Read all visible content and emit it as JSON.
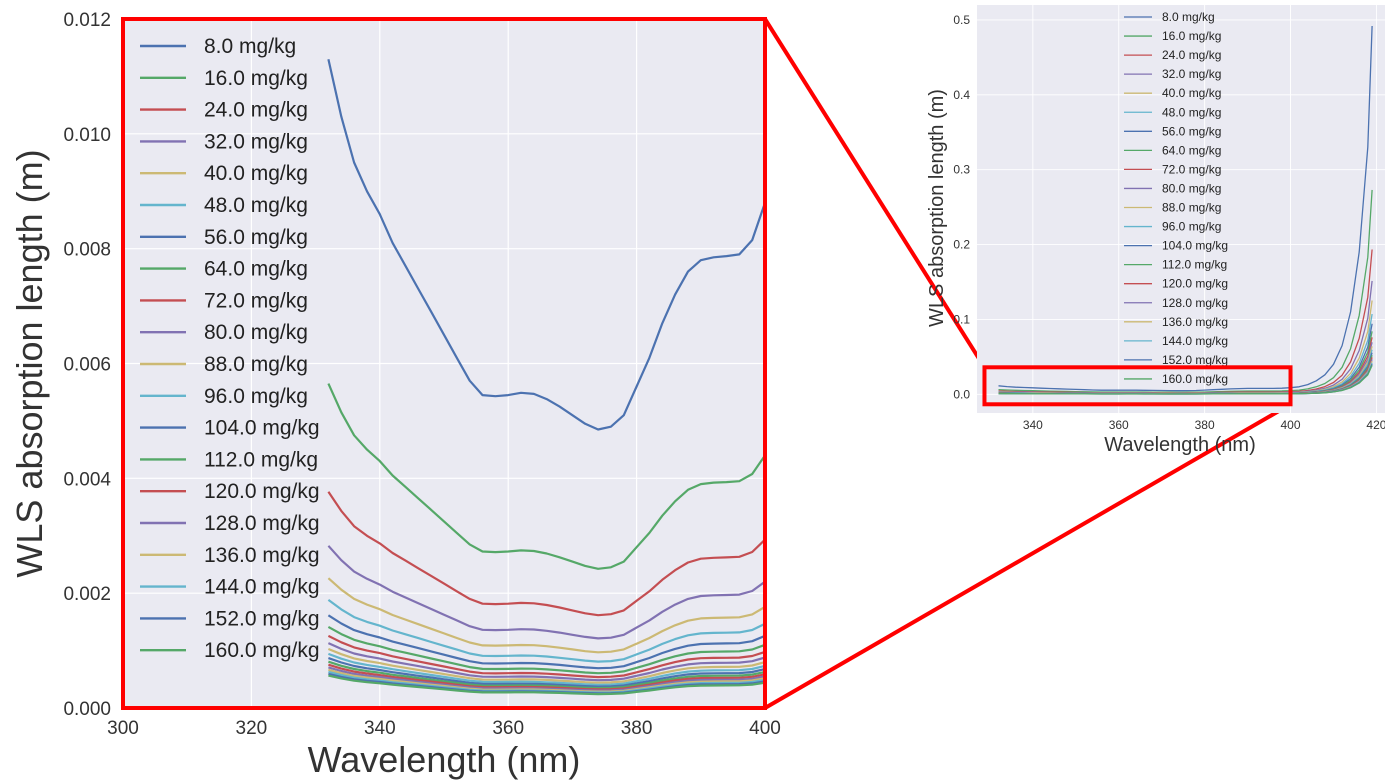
{
  "colors": {
    "panel_bg": "#EAEAF2",
    "grid": "#FFFFFF",
    "zoom_box": "#FF0000",
    "palette": [
      "#4C72B0",
      "#55A868",
      "#C44E52",
      "#8172B2",
      "#CCB974",
      "#64B5CD"
    ]
  },
  "chart_data": [
    {
      "type": "line",
      "id": "zoomed-main",
      "xlabel": "Wavelength (nm)",
      "ylabel": "WLS absorption length (m)",
      "xlim": [
        300,
        400
      ],
      "ylim": [
        0,
        0.012
      ],
      "xticks": [
        300,
        320,
        340,
        360,
        380,
        400
      ],
      "xtick_labels": [
        "300",
        "320",
        "340",
        "360",
        "380",
        "400"
      ],
      "yticks": [
        0,
        0.002,
        0.004,
        0.006,
        0.008,
        0.01,
        0.012
      ],
      "ytick_labels": [
        "0.000",
        "0.002",
        "0.004",
        "0.006",
        "0.008",
        "0.010",
        "0.012"
      ],
      "grid": true,
      "legend_position": "upper-left",
      "x": [
        332,
        334,
        336,
        338,
        340,
        342,
        344,
        346,
        348,
        350,
        352,
        354,
        356,
        358,
        360,
        362,
        364,
        366,
        368,
        370,
        372,
        374,
        376,
        378,
        380,
        382,
        384,
        386,
        388,
        390,
        392,
        394,
        396,
        398,
        400
      ],
      "base_curve": [
        0.0113,
        0.0103,
        0.0095,
        0.009,
        0.0086,
        0.0081,
        0.0077,
        0.0073,
        0.0069,
        0.0065,
        0.0061,
        0.0057,
        0.00545,
        0.00543,
        0.00545,
        0.00549,
        0.00547,
        0.00538,
        0.00525,
        0.0051,
        0.00495,
        0.00485,
        0.0049,
        0.0051,
        0.0056,
        0.0061,
        0.0067,
        0.0072,
        0.0076,
        0.0078,
        0.00785,
        0.00787,
        0.0079,
        0.00815,
        0.0088
      ],
      "series_base": 8.0,
      "series": [
        {
          "name": "8.0 mg/kg"
        },
        {
          "name": "16.0 mg/kg"
        },
        {
          "name": "24.0 mg/kg"
        },
        {
          "name": "32.0 mg/kg"
        },
        {
          "name": "40.0 mg/kg"
        },
        {
          "name": "48.0 mg/kg"
        },
        {
          "name": "56.0 mg/kg"
        },
        {
          "name": "64.0 mg/kg"
        },
        {
          "name": "72.0 mg/kg"
        },
        {
          "name": "80.0 mg/kg"
        },
        {
          "name": "88.0 mg/kg"
        },
        {
          "name": "96.0 mg/kg"
        },
        {
          "name": "104.0 mg/kg"
        },
        {
          "name": "112.0 mg/kg"
        },
        {
          "name": "120.0 mg/kg"
        },
        {
          "name": "128.0 mg/kg"
        },
        {
          "name": "136.0 mg/kg"
        },
        {
          "name": "144.0 mg/kg"
        },
        {
          "name": "152.0 mg/kg"
        },
        {
          "name": "160.0 mg/kg"
        }
      ]
    },
    {
      "type": "line",
      "id": "overview-inset",
      "xlabel": "Wavelength (nm)",
      "ylabel": "WLS absorption length (m)",
      "xlim": [
        327,
        422
      ],
      "ylim": [
        -0.025,
        0.52
      ],
      "xticks": [
        340,
        360,
        380,
        400,
        420
      ],
      "xtick_labels": [
        "340",
        "360",
        "380",
        "400",
        "420"
      ],
      "yticks": [
        0.0,
        0.1,
        0.2,
        0.3,
        0.4,
        0.5
      ],
      "ytick_labels": [
        "0.0",
        "0.1",
        "0.2",
        "0.3",
        "0.4",
        "0.5"
      ],
      "grid": true,
      "legend_position": "upper-center",
      "x_tail": [
        400,
        402,
        404,
        406,
        408,
        410,
        412,
        414,
        416,
        418,
        419
      ],
      "tail_curve": [
        0.0088,
        0.01,
        0.013,
        0.018,
        0.026,
        0.04,
        0.065,
        0.11,
        0.19,
        0.33,
        0.492
      ],
      "note_series": "same 20 series as zoomed-main"
    }
  ]
}
